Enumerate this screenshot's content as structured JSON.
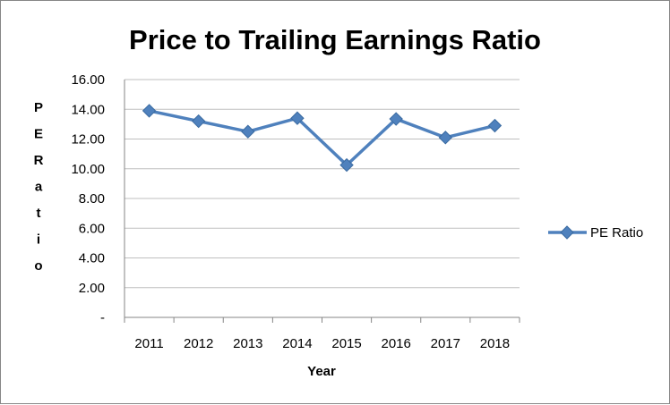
{
  "chart_data": {
    "type": "line",
    "title": "Price to Trailing Earnings Ratio",
    "xlabel": "Year",
    "ylabel": "PE Ratio",
    "categories": [
      "2011",
      "2012",
      "2013",
      "2014",
      "2015",
      "2016",
      "2017",
      "2018"
    ],
    "series": [
      {
        "name": "PE Ratio",
        "color": "#4F81BD",
        "values": [
          13.9,
          13.2,
          12.5,
          13.4,
          10.25,
          13.35,
          12.1,
          12.9
        ]
      }
    ],
    "yticks": [
      "-",
      "2.00",
      "4.00",
      "6.00",
      "8.00",
      "10.00",
      "12.00",
      "14.00",
      "16.00"
    ],
    "ylim": [
      0,
      16
    ],
    "grid": true,
    "legend": "right",
    "marker": "diamond"
  }
}
